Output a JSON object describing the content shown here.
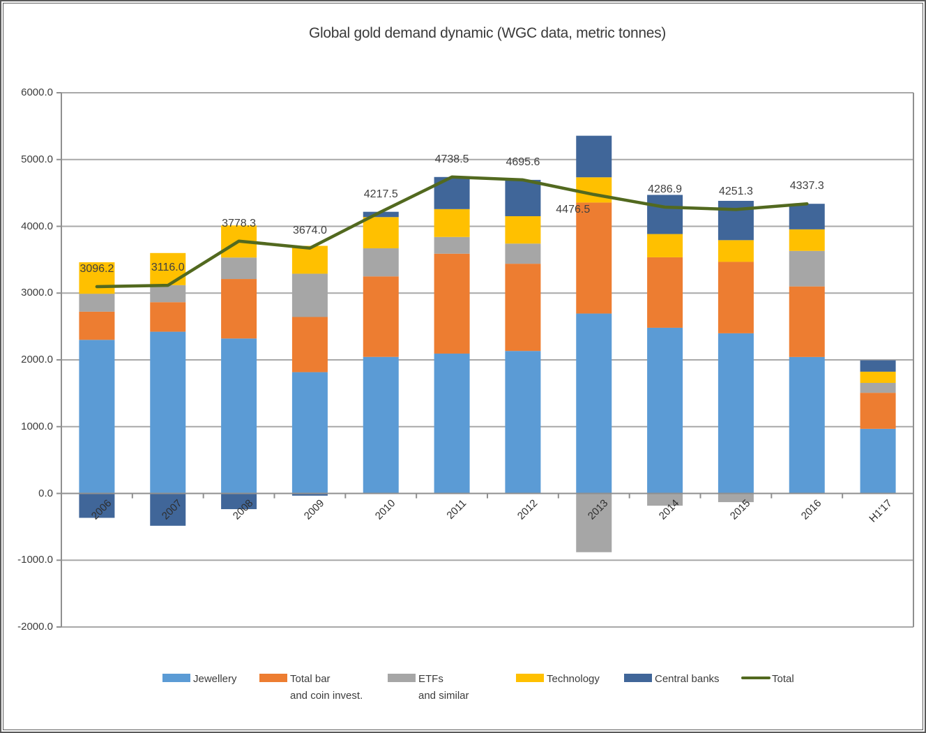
{
  "title": "Global gold demand dynamic (WGC data, metric tonnes)",
  "colors": {
    "jewellery": "#5B9BD5",
    "bar_coin": "#ED7D31",
    "etfs": "#A6A6A6",
    "technology": "#FFC000",
    "central_banks": "#406699",
    "total_line": "#52691F",
    "gridline": "#A8A8A8",
    "axis": "#8F8F8F",
    "text": "#3C3C3C",
    "frame": "#595959"
  },
  "chart_data": {
    "type": "bar",
    "subtype": "stacked-bars-with-total-line",
    "title": "Global gold demand dynamic (WGC data, metric tonnes)",
    "categories": [
      "2006",
      "2007",
      "2008",
      "2009",
      "2010",
      "2011",
      "2012",
      "2013",
      "2014",
      "2015",
      "2016",
      "H1'17"
    ],
    "series": [
      {
        "name": "Jewellery",
        "color_key": "jewellery",
        "values": [
          2300.0,
          2422.0,
          2320.0,
          1816.3,
          2044.5,
          2094.2,
          2133.8,
          2694.0,
          2481.0,
          2398.0,
          2043.0,
          967.4
        ]
      },
      {
        "name": "Total bar and coin invest.",
        "color_key": "bar_coin",
        "values": [
          422.0,
          442.0,
          891.0,
          826.0,
          1205.4,
          1496.0,
          1306.0,
          1662.0,
          1055.0,
          1070.0,
          1057.0,
          540.0
        ]
      },
      {
        "name": "ETFs and similar",
        "color_key": "etfs",
        "values": [
          268.0,
          255.0,
          321.5,
          648.0,
          420.8,
          250.0,
          301.7,
          -880.0,
          -183.6,
          -130.0,
          532.0,
          148.0
        ]
      },
      {
        "name": "Technology",
        "color_key": "technology",
        "values": [
          471.6,
          481.1,
          481.2,
          417.3,
          467.6,
          417.5,
          410.0,
          378.0,
          348.5,
          325.0,
          322.5,
          168.0
        ]
      },
      {
        "name": "Central banks",
        "color_key": "central_banks",
        "values": [
          -365.4,
          -484.1,
          -235.4,
          -33.6,
          79.2,
          480.8,
          544.1,
          622.5,
          586.0,
          588.3,
          382.8,
          170.0
        ]
      }
    ],
    "line_series": {
      "name": "Total",
      "color_key": "total_line",
      "values": [
        3096.2,
        3116.0,
        3778.3,
        3674.0,
        4217.5,
        4738.5,
        4695.6,
        4476.5,
        4286.9,
        4251.3,
        4337.3
      ],
      "labels": [
        "3096.2",
        "3116.0",
        "3778.3",
        "3674.0",
        "4217.5",
        "4738.5",
        "4695.6",
        "4476.5",
        "4286.9",
        "4251.3",
        "4337.3"
      ]
    },
    "y_axis": {
      "min": -2000,
      "max": 6000,
      "step": 1000,
      "tick_labels": [
        "6000.0",
        "5000.0",
        "4000.0",
        "3000.0",
        "2000.0",
        "1000.0",
        "0.0",
        "-1000.0",
        "-2000.0"
      ]
    },
    "grid": true,
    "legend_position": "bottom",
    "legend": {
      "items": [
        {
          "label_line1": "Jewellery",
          "label_line2": "",
          "color_key": "jewellery",
          "shape": "rect"
        },
        {
          "label_line1": "Total bar",
          "label_line2": "and coin invest.",
          "color_key": "bar_coin",
          "shape": "rect"
        },
        {
          "label_line1": "ETFs",
          "label_line2": "and similar",
          "color_key": "etfs",
          "shape": "rect"
        },
        {
          "label_line1": "Technology",
          "label_line2": "",
          "color_key": "technology",
          "shape": "rect"
        },
        {
          "label_line1": "Central banks",
          "label_line2": "",
          "color_key": "central_banks",
          "shape": "rect"
        },
        {
          "label_line1": "Total",
          "label_line2": "",
          "color_key": "total_line",
          "shape": "line"
        }
      ]
    }
  }
}
